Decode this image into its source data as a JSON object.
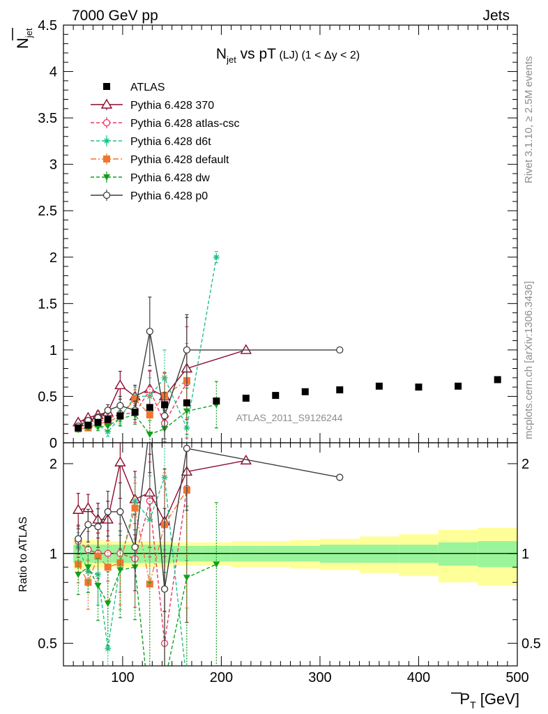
{
  "header": {
    "left": "7000 GeV pp",
    "right": "Jets"
  },
  "side_labels": {
    "rivet": "Rivet 3.1.10, ≥ 2.5M events",
    "mcplots": "mcplots.cern.ch [arXiv:1306.3436]"
  },
  "analysis_id": "ATLAS_2011_S9126244",
  "chart_data": [
    {
      "type": "scatter",
      "panel": "main",
      "title": {
        "prefix": "N",
        "sub": "jet",
        "mid": " vs pT",
        "small": " (LJ) (1 < Δy < 2)"
      },
      "ylabel": {
        "main": "N",
        "sub": "jet"
      },
      "xlabel": {
        "main": "P",
        "sub": "T",
        "unit": " [GeV]"
      },
      "xlim": [
        40,
        500
      ],
      "ylim": [
        0,
        4.5
      ],
      "yticks": [
        0,
        0.5,
        1,
        1.5,
        2,
        2.5,
        3,
        3.5,
        4,
        4.5
      ],
      "ytick_labels": [
        "0",
        "0.5",
        "1",
        "1.5",
        "2",
        "2.5",
        "3",
        "3.5",
        "4",
        "4.5"
      ],
      "xticks": [
        100,
        200,
        300,
        400,
        500
      ],
      "xtick_labels": [
        "100",
        "200",
        "300",
        "400",
        "500"
      ],
      "legend_position": "top-left",
      "series": [
        {
          "name": "ATLAS",
          "color": "#000000",
          "marker": "square",
          "line": "none",
          "x": [
            55,
            65,
            75,
            85,
            97.5,
            112.5,
            127.5,
            142.5,
            165,
            195,
            225,
            255,
            285,
            320,
            360,
            400,
            440,
            480
          ],
          "y": [
            0.16,
            0.19,
            0.22,
            0.25,
            0.29,
            0.33,
            0.38,
            0.41,
            0.43,
            0.45,
            0.48,
            0.51,
            0.55,
            0.57,
            0.61,
            0.6,
            0.61,
            0.68
          ]
        },
        {
          "name": "Pythia 6.428 370",
          "color": "#8b0a2a",
          "marker": "triangle-open",
          "line": "solid",
          "x": [
            55,
            65,
            75,
            85,
            97.5,
            112.5,
            127.5,
            142.5,
            165,
            225
          ],
          "y": [
            0.22,
            0.27,
            0.3,
            0.33,
            0.62,
            0.5,
            0.58,
            0.5,
            0.8,
            1.0
          ],
          "err": [
            0.03,
            0.03,
            0.04,
            0.05,
            0.15,
            0.12,
            0.2,
            0.25,
            0.55,
            0
          ]
        },
        {
          "name": "Pythia 6.428 atlas-csc",
          "color": "#e8355f",
          "marker": "circle-open",
          "line": "dashed",
          "x": [
            55,
            65,
            75,
            85,
            97.5,
            112.5,
            127.5,
            142.5,
            165
          ],
          "y": [
            0.17,
            0.2,
            0.23,
            0.26,
            0.31,
            0.32,
            0.57,
            0.21,
            0.65
          ],
          "err": [
            0.02,
            0.03,
            0.04,
            0.05,
            0.08,
            0.1,
            0.2,
            0.2,
            0.6
          ]
        },
        {
          "name": "Pythia 6.428 d6t",
          "color": "#1dc08a",
          "marker": "star",
          "line": "dashed",
          "x": [
            55,
            65,
            75,
            85,
            97.5,
            112.5,
            127.5,
            142.5,
            165,
            195
          ],
          "y": [
            0.17,
            0.2,
            0.19,
            0.12,
            0.27,
            0.5,
            0.5,
            0.7,
            0.16,
            2.0
          ],
          "err": [
            0.02,
            0.03,
            0.04,
            0.05,
            0.08,
            0.1,
            0.2,
            0.3,
            0.25,
            0.06
          ]
        },
        {
          "name": "Pythia 6.428 default",
          "color": "#f0762f",
          "marker": "square",
          "line": "dashdot",
          "x": [
            55,
            65,
            75,
            85,
            97.5,
            112.5,
            127.5,
            142.5,
            165
          ],
          "y": [
            0.15,
            0.16,
            0.21,
            0.22,
            0.29,
            0.47,
            0.3,
            0.51,
            0.67
          ],
          "err": [
            0.02,
            0.03,
            0.04,
            0.05,
            0.08,
            0.1,
            0.2,
            0.25,
            0.4
          ]
        },
        {
          "name": "Pythia 6.428 dw",
          "color": "#11a01c",
          "marker": "triangle-down",
          "line": "dashed",
          "x": [
            55,
            65,
            75,
            85,
            97.5,
            112.5,
            127.5,
            142.5,
            165,
            195
          ],
          "y": [
            0.14,
            0.17,
            0.17,
            0.18,
            0.26,
            0.3,
            0.09,
            0.15,
            0.34,
            0.41
          ],
          "err": [
            0.02,
            0.03,
            0.04,
            0.05,
            0.08,
            0.1,
            0.15,
            0.2,
            0.25,
            0.25
          ]
        },
        {
          "name": "Pythia 6.428 p0",
          "color": "#3c3c3c",
          "marker": "circle-open",
          "line": "solid",
          "x": [
            55,
            65,
            75,
            85,
            97.5,
            112.5,
            127.5,
            142.5,
            165,
            320
          ],
          "y": [
            0.18,
            0.24,
            0.27,
            0.35,
            0.4,
            0.35,
            1.2,
            0.29,
            1.0,
            1.0
          ],
          "err": [
            0.02,
            0.03,
            0.04,
            0.06,
            0.1,
            0.1,
            0.37,
            0.25,
            0.38,
            0
          ]
        }
      ]
    },
    {
      "type": "line",
      "panel": "ratio",
      "ylabel": "Ratio to ATLAS",
      "xlim": [
        40,
        500
      ],
      "ylim": [
        0.42,
        2.35
      ],
      "log_y": true,
      "yticks": [
        0.5,
        1,
        2
      ],
      "ytick_labels": [
        "0.5",
        "1",
        "2"
      ],
      "band_edges": [
        50,
        60,
        70,
        80,
        90,
        105,
        120,
        135,
        150,
        180,
        210,
        240,
        270,
        300,
        340,
        380,
        420,
        460,
        500
      ],
      "band_inner": [
        0.07,
        0.07,
        0.07,
        0.07,
        0.07,
        0.07,
        0.07,
        0.07,
        0.06,
        0.06,
        0.06,
        0.06,
        0.06,
        0.07,
        0.07,
        0.07,
        0.09,
        0.1
      ],
      "band_outer": [
        0.12,
        0.11,
        0.11,
        0.1,
        0.1,
        0.1,
        0.1,
        0.1,
        0.09,
        0.09,
        0.1,
        0.1,
        0.11,
        0.12,
        0.14,
        0.16,
        0.2,
        0.22
      ],
      "reference": 1,
      "series": [
        {
          "name": "Pythia 6.428 370",
          "color": "#8b0a2a",
          "x": [
            55,
            65,
            75,
            85,
            97.5,
            112.5,
            127.5,
            142.5,
            165,
            225
          ],
          "y": [
            1.4,
            1.42,
            1.3,
            1.3,
            2.02,
            1.52,
            1.6,
            1.28,
            1.88,
            2.05
          ]
        },
        {
          "name": "Pythia 6.428 atlas-csc",
          "color": "#e8355f",
          "x": [
            55,
            65,
            75,
            85,
            97.5,
            112.5,
            127.5,
            142.5,
            165
          ],
          "y": [
            1.1,
            1.03,
            1.0,
            1.0,
            1.0,
            0.96,
            1.5,
            0.5,
            1.65
          ]
        },
        {
          "name": "Pythia 6.428 d6t",
          "color": "#1dc08a",
          "x": [
            55,
            65,
            75,
            85,
            97.5,
            112.5,
            127.5,
            142.5,
            165
          ],
          "y": [
            1.05,
            0.87,
            0.85,
            0.48,
            0.92,
            1.5,
            1.3,
            1.8,
            0.37
          ]
        },
        {
          "name": "Pythia 6.428 default",
          "color": "#f0762f",
          "x": [
            55,
            65,
            75,
            85,
            97.5,
            112.5,
            127.5,
            142.5,
            165
          ],
          "y": [
            0.92,
            0.8,
            0.98,
            0.9,
            0.93,
            1.42,
            0.79,
            1.25,
            1.63
          ]
        },
        {
          "name": "Pythia 6.428 dw",
          "color": "#11a01c",
          "x": [
            55,
            65,
            75,
            85,
            97.5,
            112.5,
            127.5,
            142.5,
            165,
            195
          ],
          "y": [
            0.85,
            0.9,
            0.78,
            0.68,
            0.88,
            0.9,
            0.3,
            0.37,
            0.83,
            0.92
          ]
        },
        {
          "name": "Pythia 6.428 p0",
          "color": "#3c3c3c",
          "x": [
            55,
            65,
            75,
            85,
            97.5,
            112.5,
            127.5,
            142.5,
            165,
            320
          ],
          "y": [
            1.12,
            1.25,
            1.23,
            1.38,
            1.38,
            1.05,
            2.7,
            0.76,
            2.25,
            1.8
          ]
        }
      ]
    }
  ]
}
